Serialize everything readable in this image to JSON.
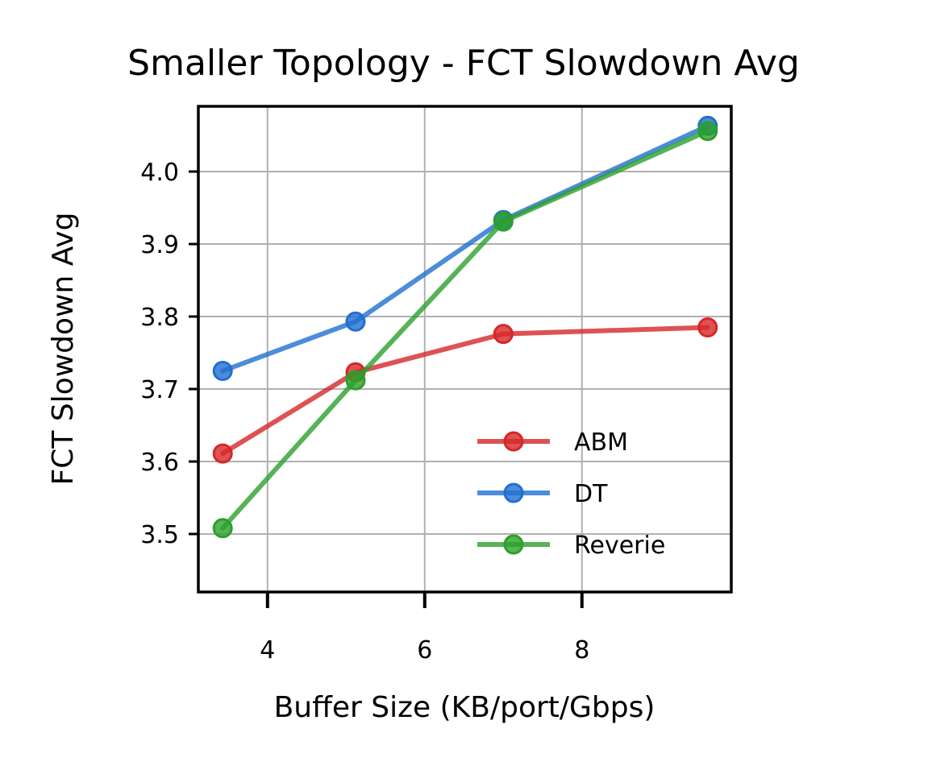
{
  "chart_data": {
    "type": "line",
    "title": "Smaller Topology - FCT Slowdown Avg",
    "xlabel": "Buffer Size (KB/port/Gbps)",
    "ylabel": "FCT Slowdown Avg",
    "xlim": [
      3.12,
      9.9
    ],
    "ylim": [
      3.42,
      4.09
    ],
    "xticks": [
      4,
      6,
      8
    ],
    "xtick_labels": [
      "4",
      "6",
      "8"
    ],
    "yticks": [
      3.5,
      3.6,
      3.7,
      3.8,
      3.9,
      4.0
    ],
    "ytick_labels": [
      "3.5",
      "3.6",
      "3.7",
      "3.8",
      "3.9",
      "4.0"
    ],
    "grid": true,
    "legend_position": "lower-right",
    "x": [
      3.43,
      5.12,
      7.0,
      9.6
    ],
    "series": [
      {
        "name": "ABM",
        "color": "#d62728",
        "values": [
          3.611,
          3.723,
          3.776,
          3.785
        ]
      },
      {
        "name": "DT",
        "color": "#1f6fd1",
        "values": [
          3.725,
          3.793,
          3.933,
          4.063
        ]
      },
      {
        "name": "Reverie",
        "color": "#2ca02c",
        "values": [
          3.508,
          3.712,
          3.931,
          4.056
        ]
      }
    ]
  }
}
